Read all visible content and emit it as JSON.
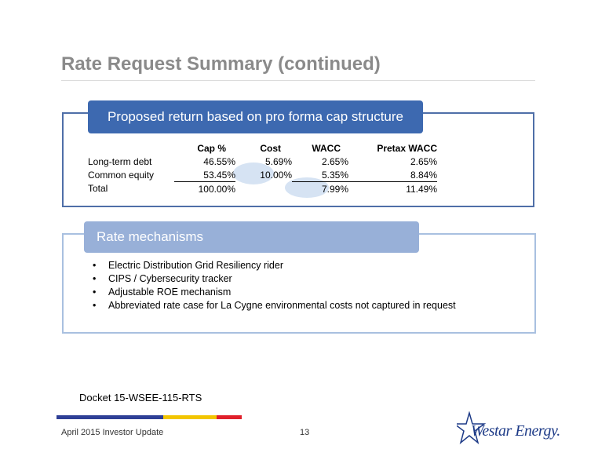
{
  "title": "Rate Request Summary (continued)",
  "section1": {
    "header": "Proposed return based on pro forma cap structure",
    "columns": [
      "Cap %",
      "Cost",
      "WACC",
      "Pretax WACC"
    ],
    "rows": [
      {
        "label": "Long-term debt",
        "cap": "46.55%",
        "cost": "5.69%",
        "wacc": "2.65%",
        "pretax": "2.65%"
      },
      {
        "label": "Common equity",
        "cap": "53.45%",
        "cost": "10.00%",
        "wacc": "5.35%",
        "pretax": "8.84%"
      },
      {
        "label": "Total",
        "cap": "100.00%",
        "cost": "",
        "wacc": "7.99%",
        "pretax": "11.49%"
      }
    ]
  },
  "section2": {
    "header": "Rate mechanisms",
    "bullets": [
      "Electric Distribution Grid Resiliency rider",
      "CIPS / Cybersecurity tracker",
      "Adjustable ROE mechanism",
      "Abbreviated rate case for La Cygne environmental costs not captured in request"
    ]
  },
  "docket": "Docket 15-WSEE-115-RTS",
  "footer": {
    "left": "April 2015 Investor Update",
    "page": "13"
  },
  "logo": {
    "text": "Westar Energy."
  },
  "colors": {
    "bar_blue": "#2e3f96",
    "bar_yellow": "#f2c500",
    "bar_red": "#e0202b",
    "header_dark": "#3d69b0",
    "header_light": "#98b0d8"
  }
}
